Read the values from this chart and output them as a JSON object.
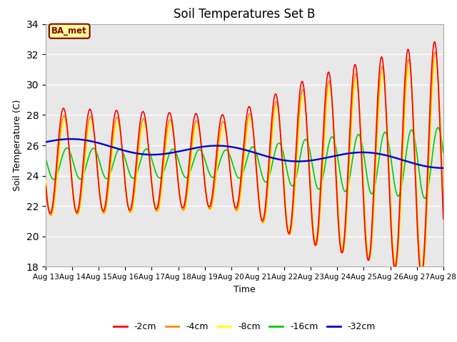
{
  "title": "Soil Temperatures Set B",
  "xlabel": "Time",
  "ylabel": "Soil Temperature (C)",
  "ylim": [
    18,
    34
  ],
  "yticks": [
    18,
    20,
    22,
    24,
    26,
    28,
    30,
    32,
    34
  ],
  "x_tick_labels": [
    "Aug 13",
    "Aug 14",
    "Aug 15",
    "Aug 16",
    "Aug 17",
    "Aug 18",
    "Aug 19",
    "Aug 20",
    "Aug 21",
    "Aug 22",
    "Aug 23",
    "Aug 24",
    "Aug 25",
    "Aug 26",
    "Aug 27",
    "Aug 28"
  ],
  "label_annotation": "BA_met",
  "colors": {
    "-2cm": "#ff0000",
    "-4cm": "#ff8c00",
    "-8cm": "#ffff00",
    "-16cm": "#00cc00",
    "-32cm": "#0000cc"
  },
  "bg_color": "#e8e8e8",
  "line_width": 1.2
}
